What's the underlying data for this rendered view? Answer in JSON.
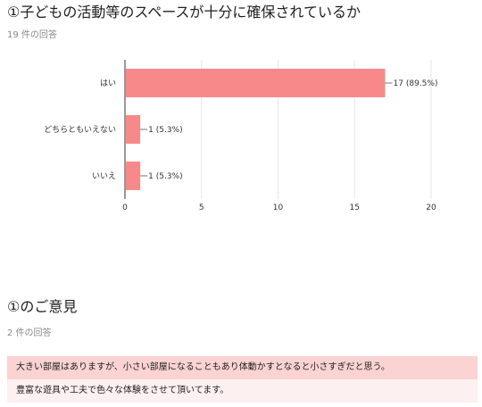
{
  "question1": {
    "title": "①子どもの活動等のスペースが十分に確保されているか",
    "response_count": "19 件の回答"
  },
  "chart_data": {
    "type": "bar",
    "orientation": "horizontal",
    "categories": [
      "はい",
      "どちらともいえない",
      "いいえ"
    ],
    "values": [
      17,
      1,
      1
    ],
    "value_labels": [
      "17 (89.5%)",
      "1 (5.3%)",
      "1 (5.3%)"
    ],
    "xlim": [
      0,
      20
    ],
    "xticks": [
      0,
      5,
      10,
      15,
      20
    ],
    "grid": true,
    "bar_color": "#f8898a"
  },
  "question2": {
    "title": "①のご意見",
    "response_count": "2 件の回答",
    "answers": [
      "大きい部屋はありますが、小さい部屋になることもあり体動かすとなると小さすぎだと思う。",
      "豊富な遊具や工夫で色々な体験をさせて頂いてます。"
    ]
  }
}
